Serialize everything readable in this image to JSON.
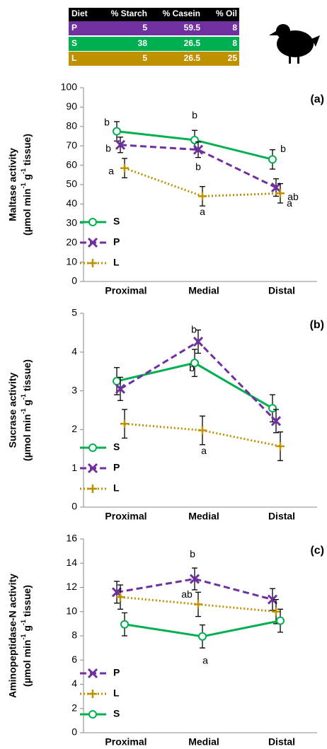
{
  "table": {
    "header": [
      "Diet",
      "% Starch",
      "% Casein",
      "% Oil"
    ],
    "rows": [
      [
        "P",
        5,
        59.5,
        8
      ],
      [
        "S",
        38,
        26.5,
        8
      ],
      [
        "L",
        5,
        26.5,
        25
      ]
    ],
    "row_colors": [
      "#7030a0",
      "#00b050",
      "#bf9000"
    ]
  },
  "chart_data": [
    {
      "type": "line",
      "panel_label": "(a)",
      "ylabel": "Maltase activity",
      "ylabel_unit": [
        "(µmol min",
        "-1",
        " g",
        "-1",
        " tissue)"
      ],
      "categories": [
        "Proximal",
        "Medial",
        "Distal"
      ],
      "ylim": [
        0,
        100
      ],
      "yticks": [
        0,
        10,
        20,
        30,
        40,
        50,
        60,
        70,
        80,
        90,
        100
      ],
      "series": [
        {
          "name": "S",
          "color": "#00b050",
          "dash": "solid",
          "marker": "circle",
          "values": [
            77.5,
            73,
            63
          ],
          "errors": [
            5,
            5,
            5
          ],
          "letters": [
            "b",
            "b",
            "b"
          ]
        },
        {
          "name": "P",
          "color": "#7030a0",
          "dash": "dashed",
          "marker": "x",
          "values": [
            70.5,
            68,
            48.5
          ],
          "errors": [
            4,
            4,
            4.5
          ],
          "letters": [
            "b",
            "b",
            "ab"
          ]
        },
        {
          "name": "L",
          "color": "#bf9000",
          "dash": "dotted",
          "marker": "plus",
          "values": [
            58.5,
            44,
            45.5
          ],
          "errors": [
            5,
            5,
            5
          ],
          "letters": [
            "a",
            "a",
            "a"
          ]
        }
      ]
    },
    {
      "type": "line",
      "panel_label": "(b)",
      "ylabel": "Sucrase activity",
      "ylabel_unit": [
        "(µmol min",
        "-1",
        " g",
        "-1",
        " tissue)"
      ],
      "categories": [
        "Proximal",
        "Medial",
        "Distal"
      ],
      "ylim": [
        0,
        5
      ],
      "yticks": [
        0,
        1,
        2,
        3,
        4,
        5
      ],
      "series": [
        {
          "name": "S",
          "color": "#00b050",
          "dash": "solid",
          "marker": "circle",
          "values": [
            3.25,
            3.72,
            2.55
          ],
          "errors": [
            0.35,
            0.35,
            0.35
          ],
          "letters": [
            null,
            "b",
            null
          ]
        },
        {
          "name": "P",
          "color": "#7030a0",
          "dash": "dashed",
          "marker": "x",
          "values": [
            3.05,
            4.27,
            2.22
          ],
          "errors": [
            0.3,
            0.3,
            0.3
          ],
          "letters": [
            null,
            "b",
            null
          ]
        },
        {
          "name": "L",
          "color": "#bf9000",
          "dash": "dotted",
          "marker": "plus",
          "values": [
            2.15,
            1.98,
            1.57
          ],
          "errors": [
            0.37,
            0.37,
            0.37
          ],
          "letters": [
            null,
            "a",
            null
          ]
        }
      ]
    },
    {
      "type": "line",
      "panel_label": "(c)",
      "ylabel": "Aminopeptidase-N activity",
      "ylabel_unit": [
        "(µmol min",
        "-1",
        " g",
        "-1",
        " tissue)"
      ],
      "categories": [
        "Proximal",
        "Medial",
        "Distal"
      ],
      "ylim": [
        0,
        16
      ],
      "yticks": [
        0,
        2,
        4,
        6,
        8,
        10,
        12,
        14,
        16
      ],
      "series": [
        {
          "name": "P",
          "color": "#7030a0",
          "dash": "dashed",
          "marker": "x",
          "values": [
            11.6,
            12.7,
            11
          ],
          "errors": [
            0.9,
            0.9,
            0.9
          ],
          "letters": [
            null,
            "b",
            null
          ]
        },
        {
          "name": "L",
          "color": "#bf9000",
          "dash": "dotted",
          "marker": "plus",
          "values": [
            11.2,
            10.6,
            10
          ],
          "errors": [
            1,
            1,
            1
          ],
          "letters": [
            null,
            "ab",
            null
          ]
        },
        {
          "name": "S",
          "color": "#00b050",
          "dash": "solid",
          "marker": "circle",
          "values": [
            8.95,
            7.95,
            9.25
          ],
          "errors": [
            0.95,
            0.95,
            0.95
          ],
          "letters": [
            null,
            "a",
            null
          ]
        }
      ]
    }
  ]
}
